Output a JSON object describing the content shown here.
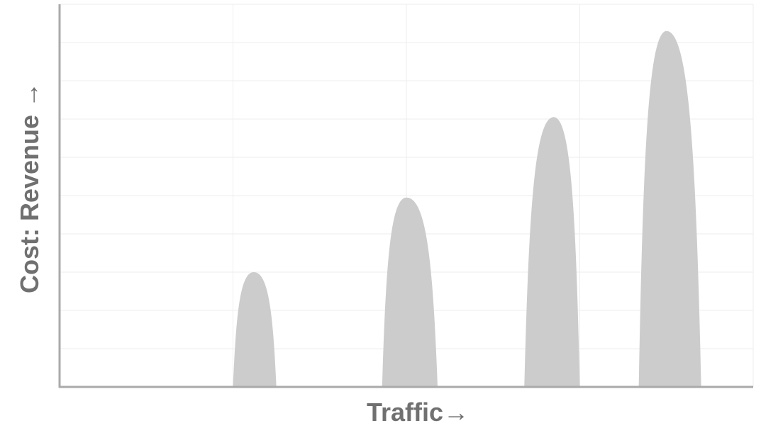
{
  "chart_data": {
    "type": "area",
    "xlabel": "Traffic→",
    "ylabel": "Cost: Revenue →",
    "xlim": [
      0,
      4
    ],
    "ylim": [
      0,
      10
    ],
    "grid": true,
    "grid_x_count": 4,
    "grid_y_count": 10,
    "series": [
      {
        "peaks": [
          {
            "x_start": 1.0,
            "x_end": 1.25,
            "x_peak": 1.12,
            "height": 3.0
          },
          {
            "x_start": 1.86,
            "x_end": 2.18,
            "x_peak": 2.0,
            "height": 4.95
          },
          {
            "x_start": 2.68,
            "x_end": 3.0,
            "x_peak": 2.85,
            "height": 7.05
          },
          {
            "x_start": 3.34,
            "x_end": 3.7,
            "x_peak": 3.5,
            "height": 9.3
          }
        ]
      }
    ]
  },
  "colors": {
    "fill": "#cccccc",
    "axis": "#aaaaaa",
    "grid": "#eeeeee",
    "text": "#707070"
  }
}
